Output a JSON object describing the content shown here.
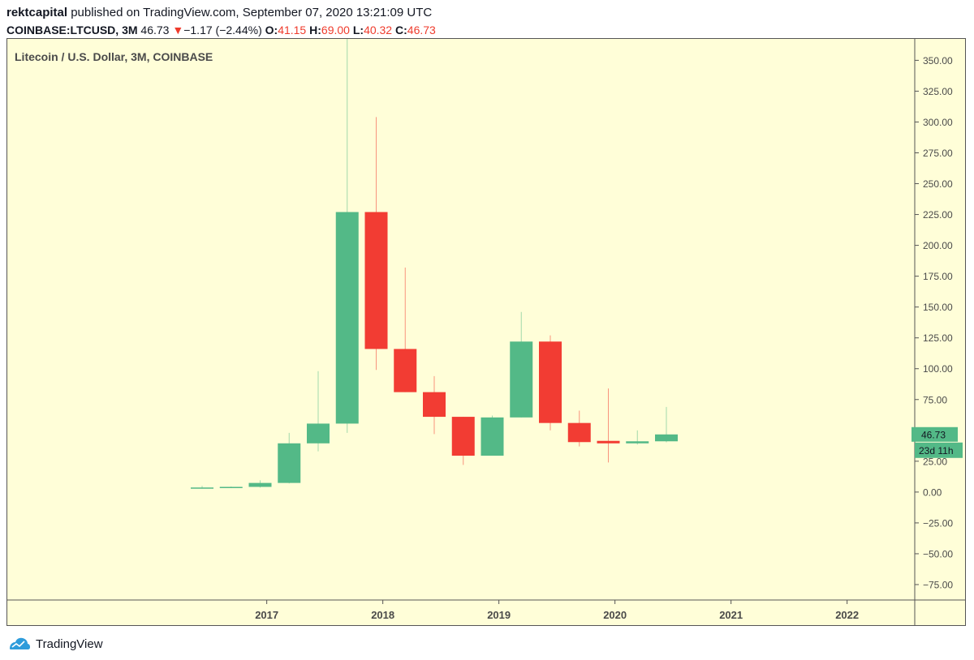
{
  "header": {
    "author": "rektcapital",
    "published_text": "published on TradingView.com, September 07, 2020 13:21:09 UTC",
    "symbol": "COINBASE:LTCUSD,",
    "interval": "3M",
    "last": "46.73",
    "change_arrow": "▼",
    "change": "−1.17 (−2.44%)",
    "open_label": "O:",
    "open": "41.15",
    "high_label": "H:",
    "high": "69.00",
    "low_label": "L:",
    "low": "40.32",
    "close_label": "C:",
    "close": "46.73"
  },
  "footer": {
    "brand": "TradingView"
  },
  "colors": {
    "background": "#fffed8",
    "up": "#53b987",
    "down": "#f23c33",
    "axis_text": "#4a4a4a"
  },
  "chart_data": {
    "type": "candlestick",
    "title": "Litecoin / U.S. Dollar, 3M, COINBASE",
    "ylim": [
      -87.5,
      368
    ],
    "y_ticks": [
      350,
      325,
      300,
      275,
      250,
      225,
      200,
      175,
      150,
      125,
      100,
      75,
      50,
      25,
      0,
      -25,
      -50,
      -75
    ],
    "y_tick_labels": [
      "350.00",
      "325.00",
      "300.00",
      "275.00",
      "250.00",
      "225.00",
      "200.00",
      "175.00",
      "150.00",
      "125.00",
      "100.00",
      "75.00",
      "50.00",
      "25.00",
      "0.00",
      "−25.00",
      "−50.00",
      "−75.00"
    ],
    "x_ticks": [
      {
        "label": "2017",
        "index": 2.2
      },
      {
        "label": "2018",
        "index": 6.2
      },
      {
        "label": "2019",
        "index": 10.2
      },
      {
        "label": "2020",
        "index": 14.2
      },
      {
        "label": "2021",
        "index": 18.2
      },
      {
        "label": "2022",
        "index": 22.2
      }
    ],
    "candles": [
      {
        "period": "2016 Q3",
        "open": 3.0,
        "high": 5.0,
        "low": 2.8,
        "close": 3.7
      },
      {
        "period": "2016 Q4",
        "open": 3.7,
        "high": 4.5,
        "low": 3.4,
        "close": 4.2
      },
      {
        "period": "2017 Q1",
        "open": 4.2,
        "high": 9.5,
        "low": 3.6,
        "close": 7.4
      },
      {
        "period": "2017 Q2",
        "open": 7.4,
        "high": 48,
        "low": 7.0,
        "close": 39.5
      },
      {
        "period": "2017 Q3",
        "open": 39.5,
        "high": 98,
        "low": 33,
        "close": 55.5
      },
      {
        "period": "2017 Q4",
        "open": 55.5,
        "high": 375,
        "low": 48,
        "close": 227
      },
      {
        "period": "2018 Q1",
        "open": 227,
        "high": 304,
        "low": 99,
        "close": 116
      },
      {
        "period": "2018 Q2",
        "open": 116,
        "high": 182,
        "low": 81,
        "close": 81
      },
      {
        "period": "2018 Q3",
        "open": 81,
        "high": 94,
        "low": 47,
        "close": 61
      },
      {
        "period": "2018 Q4",
        "open": 61,
        "high": 61,
        "low": 22,
        "close": 29.5
      },
      {
        "period": "2019 Q1",
        "open": 29.5,
        "high": 62,
        "low": 29.5,
        "close": 60.5
      },
      {
        "period": "2019 Q2",
        "open": 60.5,
        "high": 146,
        "low": 60.5,
        "close": 122
      },
      {
        "period": "2019 Q3",
        "open": 122,
        "high": 127,
        "low": 50,
        "close": 56
      },
      {
        "period": "2019 Q4",
        "open": 56,
        "high": 66,
        "low": 37,
        "close": 40.5
      },
      {
        "period": "2020 Q1",
        "open": 41.5,
        "high": 84,
        "low": 24,
        "close": 39.5
      },
      {
        "period": "2020 Q2",
        "open": 39.5,
        "high": 50,
        "low": 38.5,
        "close": 41.15
      },
      {
        "period": "2020 Q3",
        "open": 41.15,
        "high": 69.0,
        "low": 40.32,
        "close": 46.73
      }
    ],
    "last_price_label": "46.73",
    "countdown_label": "23d 11h"
  }
}
